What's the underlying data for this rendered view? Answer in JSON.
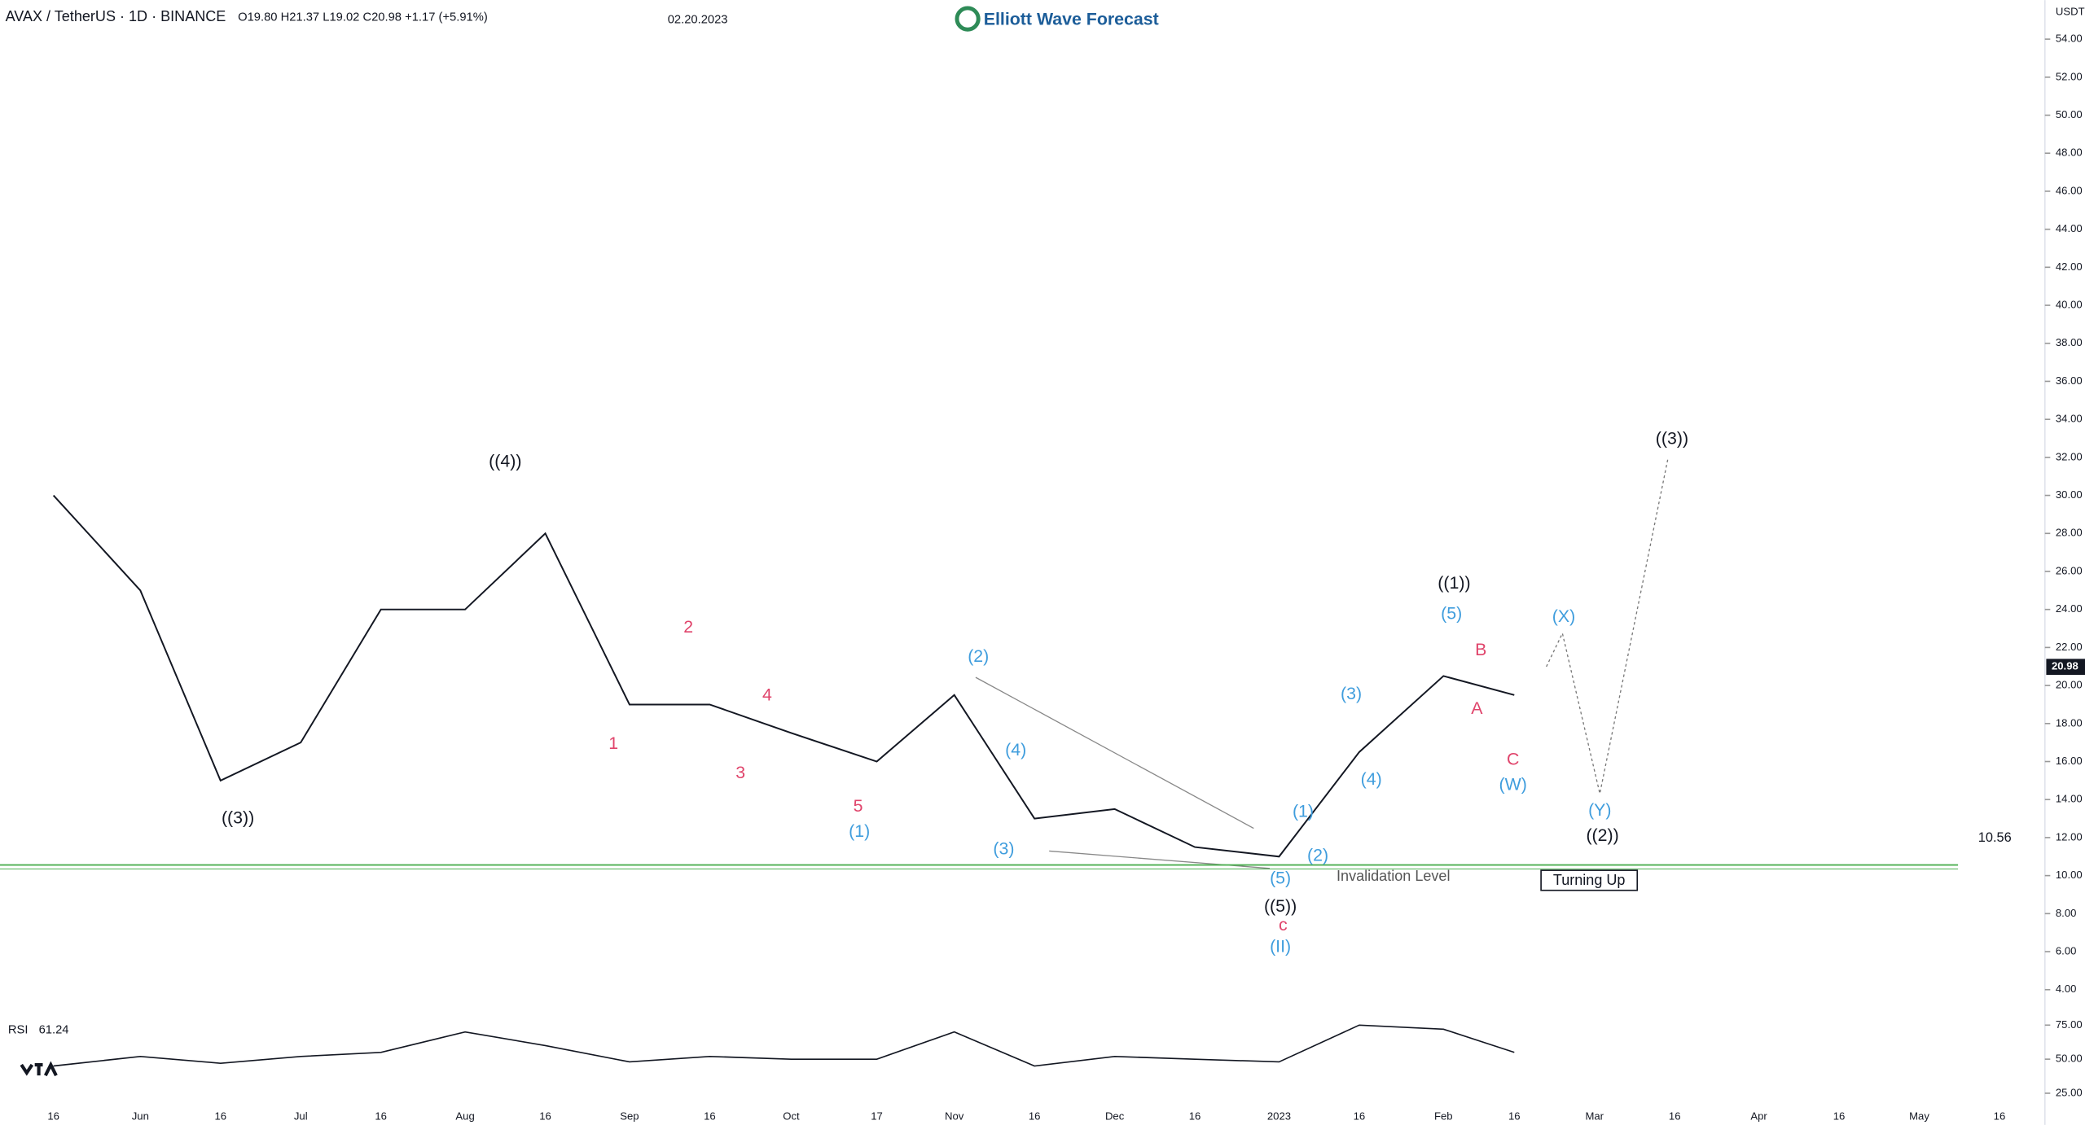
{
  "header": {
    "symbol": "AVAX / TetherUS · 1D · BINANCE",
    "ohlc": "O19.80 H21.37 L19.02 C20.98 +1.17 (+5.91%)",
    "date": "02.20.2023",
    "brand": "Elliott Wave Forecast"
  },
  "chart_data": [
    {
      "type": "line",
      "axis_unit": "USDT",
      "color": "#131722",
      "categories": [
        "16",
        "Jun",
        "16",
        "Jul",
        "16",
        "Aug",
        "16",
        "Sep",
        "16",
        "Oct",
        "17",
        "Nov",
        "16",
        "Dec",
        "16",
        "2023",
        "16",
        "Feb",
        "16",
        "Mar",
        "16",
        "Apr",
        "16",
        "May",
        "16"
      ],
      "series": [
        {
          "name": "AVAX",
          "color": "#131722",
          "values": [
            30,
            25,
            15,
            17,
            24,
            24,
            28,
            19,
            19,
            17.5,
            16,
            19.5,
            13,
            13.5,
            11.5,
            11,
            16.5,
            20.5,
            19.5,
            null,
            null,
            null,
            null,
            null,
            null
          ]
        }
      ],
      "last_price": 20.98,
      "level": 10.56,
      "level_color": "#4caf50",
      "level_label": "Invalidation Level",
      "turning": "Turning Up",
      "ylim": [
        3,
        55
      ],
      "yticks": [
        {
          "value": 4,
          "label": "4.00"
        },
        {
          "value": 6,
          "label": "6.00"
        },
        {
          "value": 8,
          "label": "8.00"
        },
        {
          "value": 10,
          "label": "10.00"
        },
        {
          "value": 12,
          "label": "12.00"
        },
        {
          "value": 14,
          "label": "14.00"
        },
        {
          "value": 16,
          "label": "16.00"
        },
        {
          "value": 18,
          "label": "18.00"
        },
        {
          "value": 20,
          "label": "20.00"
        },
        {
          "value": 22,
          "label": "22.00"
        },
        {
          "value": 24,
          "label": "24.00"
        },
        {
          "value": 26,
          "label": "26.00"
        },
        {
          "value": 28,
          "label": "28.00"
        },
        {
          "value": 30,
          "label": "30.00"
        },
        {
          "value": 32,
          "label": "32.00"
        },
        {
          "value": 34,
          "label": "34.00"
        },
        {
          "value": 36,
          "label": "36.00"
        },
        {
          "value": 38,
          "label": "38.00"
        },
        {
          "value": 40,
          "label": "40.00"
        },
        {
          "value": 42,
          "label": "42.00"
        },
        {
          "value": 44,
          "label": "44.00"
        },
        {
          "value": 46,
          "label": "46.00"
        },
        {
          "value": 48,
          "label": "48.00"
        },
        {
          "value": 50,
          "label": "50.00"
        },
        {
          "value": 52,
          "label": "52.00"
        },
        {
          "value": 54,
          "label": "54.00"
        }
      ],
      "annotations": [
        {
          "text": "((3))",
          "color": "#131722"
        },
        {
          "text": "((4))",
          "color": "#131722"
        },
        {
          "text": "1",
          "color": "#e0446b"
        },
        {
          "text": "2",
          "color": "#e0446b"
        },
        {
          "text": "3",
          "color": "#e0446b"
        },
        {
          "text": "4",
          "color": "#e0446b"
        },
        {
          "text": "5",
          "color": "#e0446b"
        },
        {
          "text": "(1)",
          "color": "#3f9ddd"
        },
        {
          "text": "(2)",
          "color": "#3f9ddd"
        },
        {
          "text": "(3)",
          "color": "#3f9ddd"
        },
        {
          "text": "(4)",
          "color": "#3f9ddd"
        },
        {
          "text": "(5)",
          "color": "#3f9ddd"
        },
        {
          "text": "((5))",
          "color": "#131722"
        },
        {
          "text": "c",
          "color": "#e0446b"
        },
        {
          "text": "(II)",
          "color": "#3f9ddd"
        },
        {
          "text": "(1)",
          "color": "#3f9ddd"
        },
        {
          "text": "(2)",
          "color": "#3f9ddd"
        },
        {
          "text": "(3)",
          "color": "#3f9ddd"
        },
        {
          "text": "(4)",
          "color": "#3f9ddd"
        },
        {
          "text": "(5)",
          "color": "#3f9ddd"
        },
        {
          "text": "((1))",
          "color": "#131722"
        },
        {
          "text": "B",
          "color": "#e0446b"
        },
        {
          "text": "A",
          "color": "#e0446b"
        },
        {
          "text": "C",
          "color": "#e0446b"
        },
        {
          "text": "(W)",
          "color": "#3f9ddd"
        },
        {
          "text": "(X)",
          "color": "#3f9ddd"
        },
        {
          "text": "(Y)",
          "color": "#3f9ddd"
        },
        {
          "text": "((2))",
          "color": "#131722"
        },
        {
          "text": "((3))",
          "color": "#131722"
        }
      ]
    },
    {
      "type": "line",
      "title": "RSI",
      "last": 61.24,
      "series": [
        {
          "name": "RSI",
          "color": "#131722",
          "values": [
            45,
            52,
            47,
            52,
            55,
            70,
            60,
            48,
            52,
            50,
            50,
            70,
            45,
            52,
            50,
            48,
            75,
            72,
            55,
            null,
            null,
            null,
            null,
            null,
            null
          ]
        }
      ],
      "ylim": [
        20,
        80
      ],
      "yticks": [
        {
          "value": 25,
          "label": "25.00"
        },
        {
          "value": 50,
          "label": "50.00"
        },
        {
          "value": 75,
          "label": "75.00"
        }
      ]
    }
  ]
}
